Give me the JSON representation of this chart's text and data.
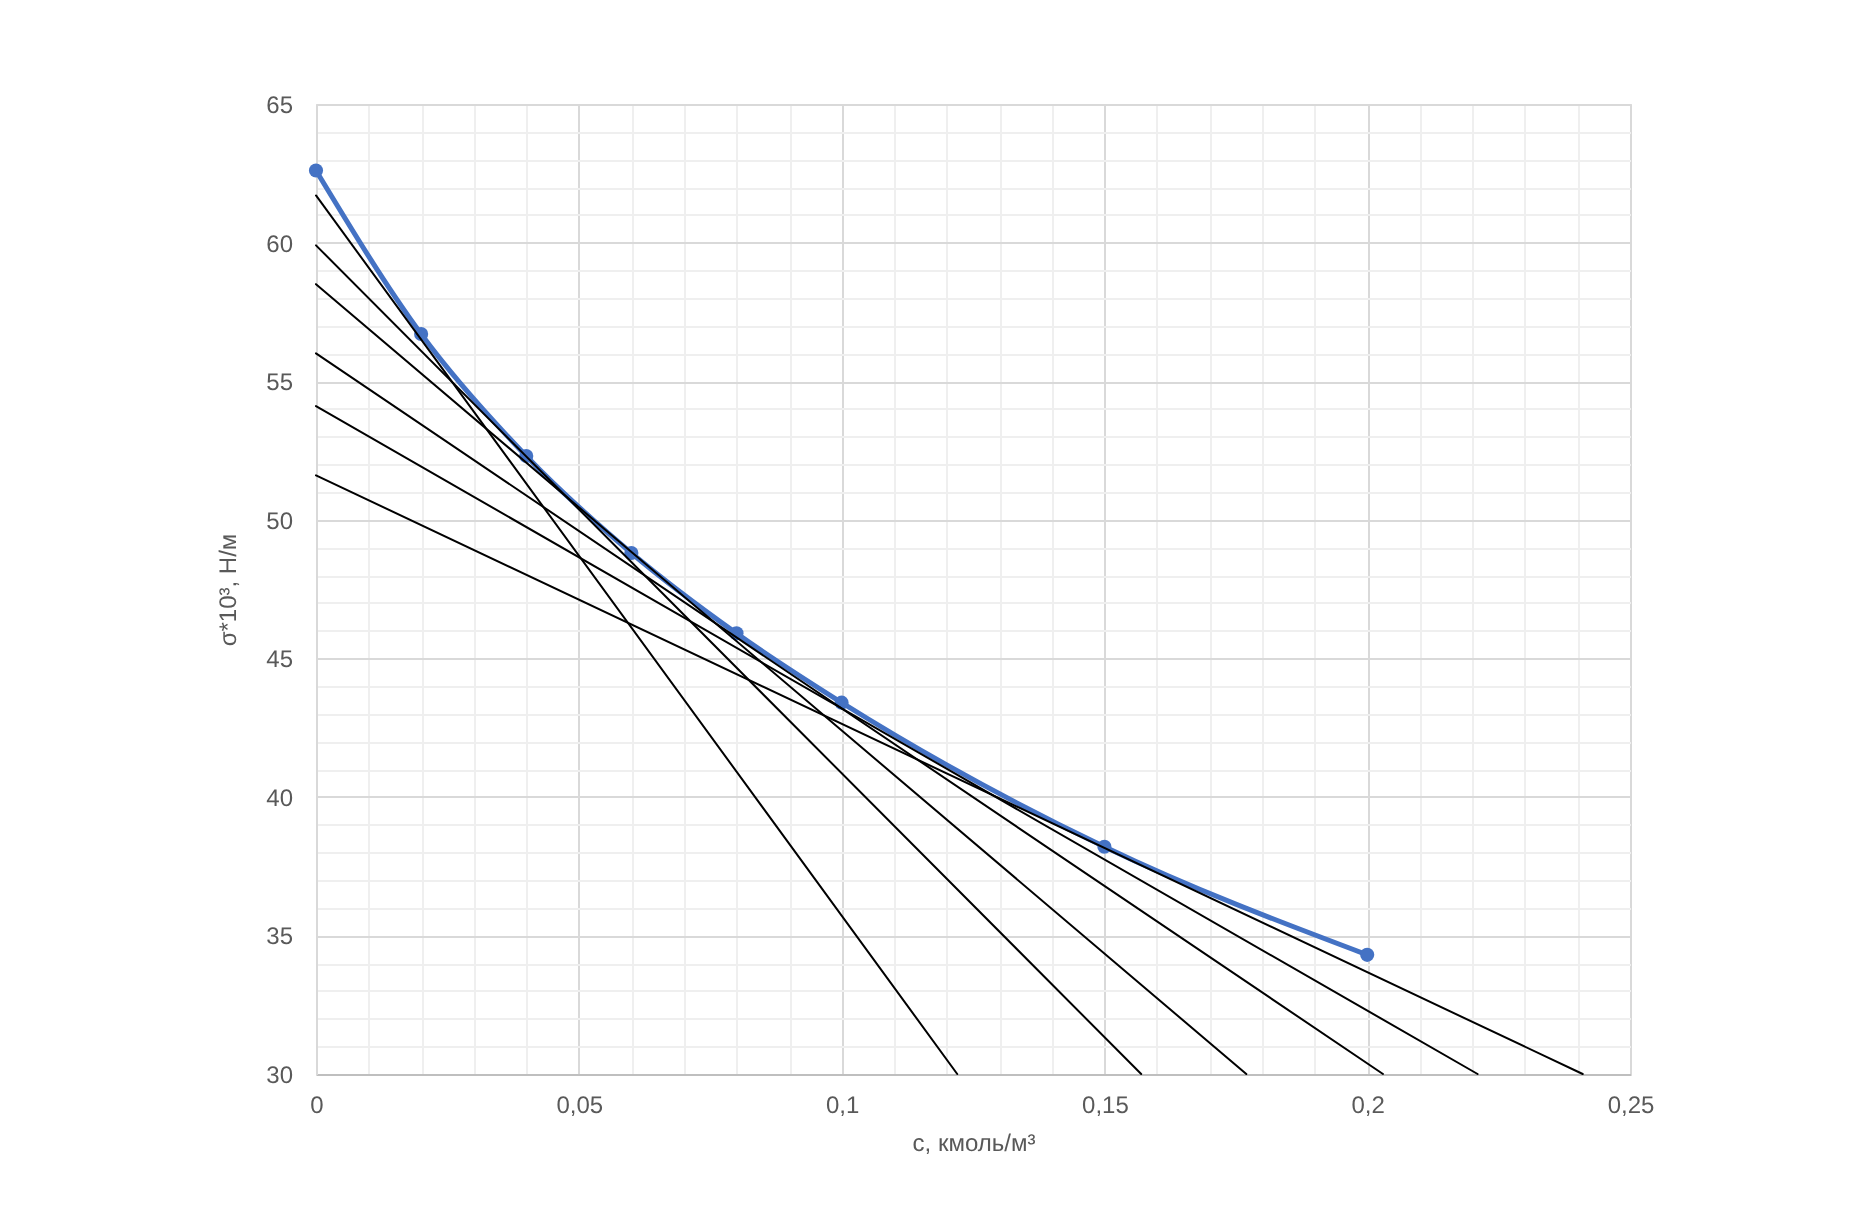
{
  "chart_data": {
    "type": "line",
    "xlabel": "c, кмоль/м³",
    "ylabel": "σ*10³, Н/м",
    "xlim": [
      0,
      0.25
    ],
    "ylim": [
      30,
      65
    ],
    "xticks": [
      0,
      {
        "value": 0.01,
        "label": null
      },
      {
        "value": 0.02,
        "label": null
      },
      {
        "value": 0.03,
        "label": null
      },
      {
        "value": 0.04,
        "label": null
      },
      {
        "value": 0.05,
        "label": "0,05"
      },
      {
        "value": 0.06,
        "label": null
      },
      {
        "value": 0.07,
        "label": null
      },
      {
        "value": 0.08,
        "label": null
      },
      {
        "value": 0.09,
        "label": null
      },
      {
        "value": 0.1,
        "label": "0,1"
      },
      {
        "value": 0.11,
        "label": null
      },
      {
        "value": 0.12,
        "label": null
      },
      {
        "value": 0.13,
        "label": null
      },
      {
        "value": 0.14,
        "label": null
      },
      {
        "value": 0.15,
        "label": "0,15"
      },
      {
        "value": 0.16,
        "label": null
      },
      {
        "value": 0.17,
        "label": null
      },
      {
        "value": 0.18,
        "label": null
      },
      {
        "value": 0.19,
        "label": null
      },
      {
        "value": 0.2,
        "label": "0,2"
      },
      {
        "value": 0.21,
        "label": null
      },
      {
        "value": 0.22,
        "label": null
      },
      {
        "value": 0.23,
        "label": null
      },
      {
        "value": 0.24,
        "label": null
      },
      {
        "value": 0.25,
        "label": "0,25"
      }
    ],
    "yticks": [
      30,
      {
        "value": 31,
        "label": null
      },
      {
        "value": 32,
        "label": null
      },
      {
        "value": 33,
        "label": null
      },
      {
        "value": 34,
        "label": null
      },
      35,
      {
        "value": 36,
        "label": null
      },
      {
        "value": 37,
        "label": null
      },
      {
        "value": 38,
        "label": null
      },
      {
        "value": 39,
        "label": null
      },
      40,
      {
        "value": 41,
        "label": null
      },
      {
        "value": 42,
        "label": null
      },
      {
        "value": 43,
        "label": null
      },
      {
        "value": 44,
        "label": null
      },
      45,
      {
        "value": 46,
        "label": null
      },
      {
        "value": 47,
        "label": null
      },
      {
        "value": 48,
        "label": null
      },
      {
        "value": 49,
        "label": null
      },
      50,
      {
        "value": 51,
        "label": null
      },
      {
        "value": 52,
        "label": null
      },
      {
        "value": 53,
        "label": null
      },
      {
        "value": 54,
        "label": null
      },
      55,
      {
        "value": 56,
        "label": null
      },
      {
        "value": 57,
        "label": null
      },
      {
        "value": 58,
        "label": null
      },
      {
        "value": 59,
        "label": null
      },
      60,
      {
        "value": 61,
        "label": null
      },
      {
        "value": 62,
        "label": null
      },
      {
        "value": 63,
        "label": null
      },
      {
        "value": 64,
        "label": null
      },
      65
    ],
    "grid": true,
    "legend": false,
    "series": [
      {
        "color": "#4472c4",
        "marker": "circle",
        "x": [
          0,
          0.02,
          0.04,
          0.06,
          0.08,
          0.1,
          0.15,
          0.2
        ],
        "values": [
          62.6,
          56.7,
          52.3,
          48.8,
          45.9,
          43.4,
          38.2,
          34.3
        ]
      },
      {
        "color": "#000000",
        "marker": "none",
        "x": [
          0,
          0.122
        ],
        "values": [
          61.7,
          30
        ]
      },
      {
        "color": "#000000",
        "marker": "none",
        "x": [
          0,
          0.157
        ],
        "values": [
          59.9,
          30
        ]
      },
      {
        "color": "#000000",
        "marker": "none",
        "x": [
          0,
          0.177
        ],
        "values": [
          58.5,
          30
        ]
      },
      {
        "color": "#000000",
        "marker": "none",
        "x": [
          0,
          0.203
        ],
        "values": [
          56.0,
          30
        ]
      },
      {
        "color": "#000000",
        "marker": "none",
        "x": [
          0,
          0.221
        ],
        "values": [
          54.1,
          30
        ]
      },
      {
        "color": "#000000",
        "marker": "none",
        "x": [
          0,
          0.241
        ],
        "values": [
          51.6,
          30
        ]
      }
    ]
  }
}
